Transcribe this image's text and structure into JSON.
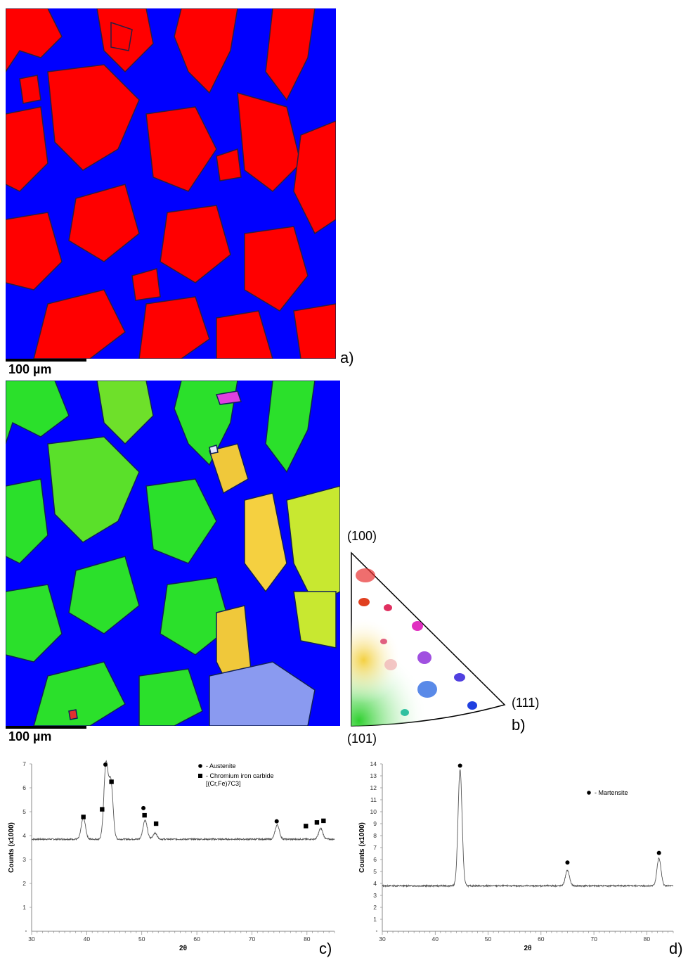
{
  "panels": {
    "a": {
      "letter": "a)",
      "scale_label": "100 µm",
      "colors": {
        "phase1": "#ff0000",
        "phase2": "#0000ff"
      }
    },
    "b": {
      "letter": "b)",
      "scale_label": "100 µm",
      "ipf": {
        "top": "(100)",
        "right": "(111)",
        "bottom": "(101)"
      }
    },
    "c": {
      "letter": "c)"
    },
    "d": {
      "letter": "d)"
    }
  },
  "chart_data": [
    {
      "type": "line",
      "xlabel": "2θ",
      "ylabel": "Counts (x1000)",
      "xlim": [
        30,
        85
      ],
      "ylim": [
        0,
        7
      ],
      "xticks": [
        30,
        40,
        50,
        60,
        70,
        80
      ],
      "yticks": [
        1,
        2,
        3,
        4,
        5,
        6,
        7
      ],
      "baseline": 3.85,
      "peaks": [
        {
          "x": 39.4,
          "y": 4.75
        },
        {
          "x": 43.5,
          "y": 6.95
        },
        {
          "x": 44.4,
          "y": 6.2
        },
        {
          "x": 50.6,
          "y": 4.65
        },
        {
          "x": 52.4,
          "y": 4.1
        },
        {
          "x": 74.6,
          "y": 4.45
        },
        {
          "x": 82.5,
          "y": 4.3
        }
      ],
      "markers": [
        {
          "symbol": "circle",
          "x": 43.4,
          "y": 6.97
        },
        {
          "symbol": "circle",
          "x": 50.3,
          "y": 5.15
        },
        {
          "symbol": "circle",
          "x": 74.5,
          "y": 4.6
        },
        {
          "symbol": "square",
          "x": 39.4,
          "y": 4.78
        },
        {
          "symbol": "square",
          "x": 42.8,
          "y": 5.1
        },
        {
          "symbol": "square",
          "x": 44.5,
          "y": 6.25
        },
        {
          "symbol": "square",
          "x": 50.5,
          "y": 4.85
        },
        {
          "symbol": "square",
          "x": 52.6,
          "y": 4.5
        },
        {
          "symbol": "square",
          "x": 79.8,
          "y": 4.4
        },
        {
          "symbol": "square",
          "x": 81.8,
          "y": 4.55
        },
        {
          "symbol": "square",
          "x": 83.0,
          "y": 4.62
        }
      ],
      "legend": [
        {
          "symbol": "circle",
          "label": "- Austenite"
        },
        {
          "symbol": "square",
          "label": "- Chromium iron carbide",
          "sub": "[(Cr,Fe)7C3]"
        }
      ]
    },
    {
      "type": "line",
      "xlabel": "2θ",
      "ylabel": "Counts (x1000)",
      "xlim": [
        30,
        85
      ],
      "ylim": [
        0,
        14
      ],
      "xticks": [
        30,
        40,
        50,
        60,
        70,
        80
      ],
      "yticks": [
        1,
        2,
        3,
        4,
        5,
        6,
        7,
        8,
        9,
        10,
        11,
        12,
        13,
        14
      ],
      "baseline": 3.8,
      "peaks": [
        {
          "x": 44.7,
          "y": 13.5
        },
        {
          "x": 65.0,
          "y": 5.1
        },
        {
          "x": 82.3,
          "y": 6.1
        }
      ],
      "markers": [
        {
          "symbol": "circle",
          "x": 44.7,
          "y": 13.85
        },
        {
          "symbol": "circle",
          "x": 65.0,
          "y": 5.75
        },
        {
          "symbol": "circle",
          "x": 82.3,
          "y": 6.55
        }
      ],
      "legend": [
        {
          "symbol": "circle",
          "label": "- Martensite"
        }
      ]
    }
  ]
}
